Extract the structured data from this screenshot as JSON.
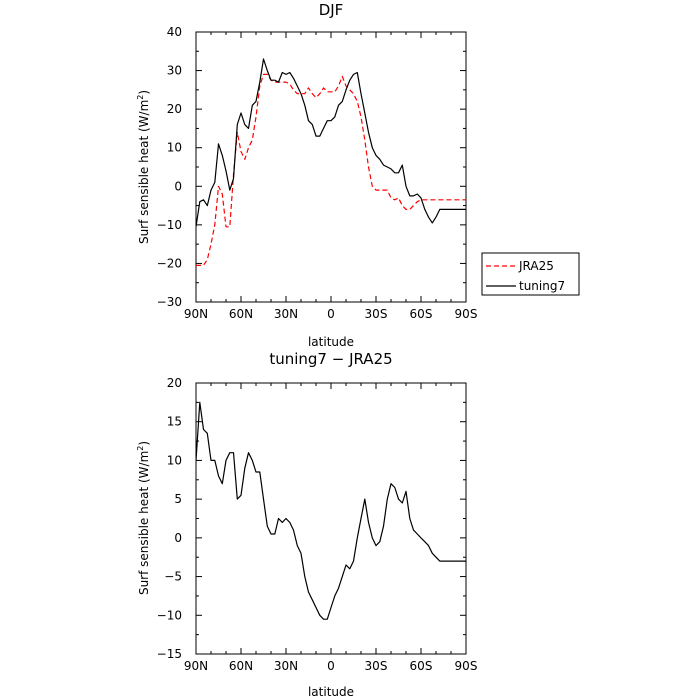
{
  "chart_data": [
    {
      "type": "line",
      "title": "DJF",
      "xlabel": "latitude",
      "ylabel": "Surf sensible heat (W/m",
      "ylabel_sup": "2",
      "ylabel_close": ")",
      "xlim": [
        90,
        -90
      ],
      "ylim": [
        -30,
        40
      ],
      "xticks": [
        90,
        60,
        30,
        0,
        -30,
        -60,
        -90
      ],
      "xtick_labels": [
        "90N",
        "60N",
        "30N",
        "0",
        "30S",
        "60S",
        "90S"
      ],
      "yticks": [
        -30,
        -20,
        -10,
        0,
        10,
        20,
        30,
        40
      ],
      "ytick_labels": [
        "−30",
        "−20",
        "−10",
        "0",
        "10",
        "20",
        "30",
        "40"
      ],
      "series": [
        {
          "name": "JRA25",
          "color": "#ff0000",
          "dashed": true,
          "x": [
            90,
            87.5,
            85,
            82.5,
            80,
            77.5,
            75,
            72.5,
            70,
            67.5,
            65,
            62.5,
            60,
            57.5,
            55,
            52.5,
            50,
            47.5,
            45,
            42.5,
            40,
            37.5,
            35,
            32.5,
            30,
            27.5,
            25,
            22.5,
            20,
            17.5,
            15,
            12.5,
            10,
            7.5,
            5,
            2.5,
            0,
            -2.5,
            -5,
            -7.5,
            -10,
            -12.5,
            -15,
            -17.5,
            -20,
            -22.5,
            -25,
            -27.5,
            -30,
            -32.5,
            -35,
            -37.5,
            -40,
            -42.5,
            -45,
            -47.5,
            -50,
            -52.5,
            -55,
            -57.5,
            -60,
            -62.5,
            -65,
            -67.5,
            -70,
            -72.5,
            -75,
            -77.5,
            -80,
            -82.5,
            -85,
            -87.5,
            -90
          ],
          "values": [
            -20.5,
            -20.5,
            -20.5,
            -19,
            -15,
            -10,
            0,
            -2,
            -10.5,
            -10.5,
            3,
            14,
            9,
            7,
            10,
            12,
            18,
            26,
            29,
            29,
            27.5,
            27,
            27,
            27,
            27,
            26.5,
            25,
            24,
            24,
            24,
            25.5,
            24,
            23,
            24,
            25.5,
            24.5,
            24.5,
            24.5,
            26,
            28.5,
            26,
            25,
            24,
            22,
            18,
            12,
            5,
            0,
            -1,
            -1,
            -1,
            -1,
            -3,
            -3.5,
            -3,
            -5,
            -6,
            -6,
            -5,
            -4,
            -3.5,
            -3.5,
            -3.5,
            -3.5,
            -3.5,
            -3.5,
            -3.5,
            -3.5,
            -3.5,
            -3.5,
            -3.5,
            -3.5,
            -3.5
          ]
        },
        {
          "name": "tuning7",
          "color": "#000000",
          "dashed": false,
          "x": [
            90,
            87.5,
            85,
            82.5,
            80,
            77.5,
            75,
            72.5,
            70,
            67.5,
            65,
            62.5,
            60,
            57.5,
            55,
            52.5,
            50,
            47.5,
            45,
            42.5,
            40,
            37.5,
            35,
            32.5,
            30,
            27.5,
            25,
            22.5,
            20,
            17.5,
            15,
            12.5,
            10,
            7.5,
            5,
            2.5,
            0,
            -2.5,
            -5,
            -7.5,
            -10,
            -12.5,
            -15,
            -17.5,
            -20,
            -22.5,
            -25,
            -27.5,
            -30,
            -32.5,
            -35,
            -37.5,
            -40,
            -42.5,
            -45,
            -47.5,
            -50,
            -52.5,
            -55,
            -57.5,
            -60,
            -62.5,
            -65,
            -67.5,
            -70,
            -72.5,
            -75,
            -77.5,
            -80,
            -82.5,
            -85,
            -87.5,
            -90
          ],
          "values": [
            -10.5,
            -4,
            -3.5,
            -5,
            -1,
            1,
            11,
            8,
            4,
            -1,
            2,
            16,
            19,
            16,
            15,
            21,
            22,
            27,
            33,
            30,
            27.5,
            27.5,
            27,
            29.5,
            29,
            29.5,
            28,
            26,
            24,
            21,
            17,
            16,
            13,
            13,
            15,
            17,
            17,
            18,
            21,
            22,
            25,
            27.5,
            29,
            29.5,
            24,
            19,
            14,
            10,
            8,
            7,
            5.5,
            5,
            4.5,
            3.5,
            3.5,
            5.5,
            0,
            -2.5,
            -2.5,
            -2,
            -3,
            -6,
            -8,
            -9.5,
            -8,
            -6,
            -6,
            -6,
            -6,
            -6,
            -6,
            -6,
            -6
          ]
        }
      ],
      "legend": {
        "position": "right",
        "entries": [
          "JRA25",
          "tuning7"
        ]
      }
    },
    {
      "type": "line",
      "title": "tuning7 − JRA25",
      "xlabel": "latitude",
      "ylabel": "Surf sensible heat (W/m",
      "ylabel_sup": "2",
      "ylabel_close": ")",
      "xlim": [
        90,
        -90
      ],
      "ylim": [
        -15,
        20
      ],
      "xticks": [
        90,
        60,
        30,
        0,
        -30,
        -60,
        -90
      ],
      "xtick_labels": [
        "90N",
        "60N",
        "30N",
        "0",
        "30S",
        "60S",
        "90S"
      ],
      "yticks": [
        -15,
        -10,
        -5,
        0,
        5,
        10,
        15,
        20
      ],
      "ytick_labels": [
        "−15",
        "−10",
        "−5",
        "0",
        "5",
        "10",
        "15",
        "20"
      ],
      "series": [
        {
          "name": "tuning7 − JRA25",
          "color": "#000000",
          "dashed": false,
          "x": [
            90,
            87.5,
            85,
            82.5,
            80,
            77.5,
            75,
            72.5,
            70,
            67.5,
            65,
            62.5,
            60,
            57.5,
            55,
            52.5,
            50,
            47.5,
            45,
            42.5,
            40,
            37.5,
            35,
            32.5,
            30,
            27.5,
            25,
            22.5,
            20,
            17.5,
            15,
            12.5,
            10,
            7.5,
            5,
            2.5,
            0,
            -2.5,
            -5,
            -7.5,
            -10,
            -12.5,
            -15,
            -17.5,
            -20,
            -22.5,
            -25,
            -27.5,
            -30,
            -32.5,
            -35,
            -37.5,
            -40,
            -42.5,
            -45,
            -47.5,
            -50,
            -52.5,
            -55,
            -57.5,
            -60,
            -62.5,
            -65,
            -67.5,
            -70,
            -72.5,
            -75,
            -77.5,
            -80,
            -82.5,
            -85,
            -87.5,
            -90
          ],
          "values": [
            10,
            17.5,
            14,
            13.5,
            10,
            10,
            8,
            7,
            10,
            11,
            11,
            5,
            5.5,
            9,
            11,
            10,
            8.5,
            8.5,
            5,
            1.5,
            0.5,
            0.5,
            2.5,
            2,
            2.5,
            2,
            1,
            -1,
            -2,
            -5,
            -7,
            -8,
            -9,
            -10,
            -10.5,
            -10.5,
            -9,
            -7.5,
            -6.5,
            -5,
            -3.5,
            -4,
            -3,
            0,
            2.5,
            5,
            2,
            0,
            -1,
            -0.5,
            1.5,
            5,
            7,
            6.5,
            5,
            4.5,
            6,
            2.5,
            1,
            0.5,
            0,
            -0.5,
            -1,
            -2,
            -2.5,
            -3,
            -3,
            -3,
            -3,
            -3,
            -3,
            -3,
            -3
          ]
        }
      ]
    }
  ]
}
